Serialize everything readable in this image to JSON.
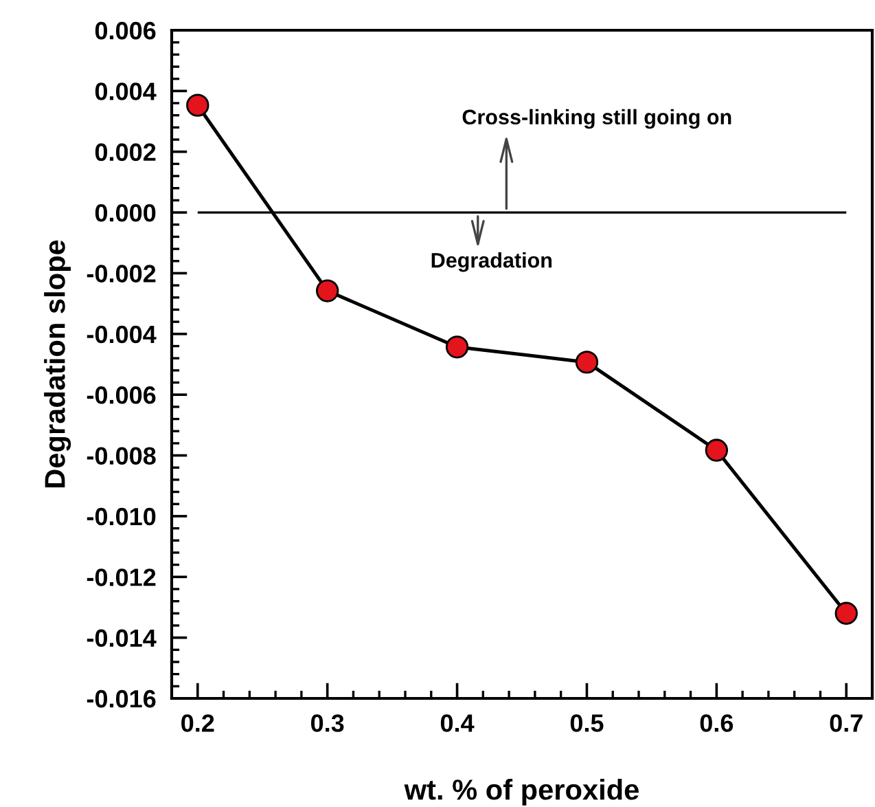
{
  "chart_data": {
    "type": "line",
    "xlabel": "wt. % of peroxide",
    "ylabel": "Degradation slope",
    "x": [
      0.2,
      0.3,
      0.4,
      0.5,
      0.6,
      0.7
    ],
    "series": [
      {
        "color": "#e3141b",
        "values": [
          0.00353,
          -0.00258,
          -0.00443,
          -0.00493,
          -0.00783,
          -0.0132
        ]
      }
    ],
    "marker": "circle",
    "line_style": "solid",
    "grid": false,
    "legend": false,
    "xlim": [
      0.18,
      0.72
    ],
    "xticks": [
      0.2,
      0.3,
      0.4,
      0.5,
      0.6,
      0.7
    ],
    "ylim": [
      -0.016,
      0.006
    ],
    "yticks": [
      {
        "value": -0.016,
        "label": "-0.016"
      },
      {
        "value": -0.014,
        "label": "-0.014"
      },
      {
        "value": -0.012,
        "label": "-0.012"
      },
      {
        "value": -0.01,
        "label": "-0.010"
      },
      {
        "value": -0.008,
        "label": "-0.008"
      },
      {
        "value": -0.006,
        "label": "-0.006"
      },
      {
        "value": -0.004,
        "label": "-0.004"
      },
      {
        "value": -0.002,
        "label": "-0.002"
      },
      {
        "value": 0,
        "label": "0.000"
      },
      {
        "value": 0.002,
        "label": "0.002"
      },
      {
        "value": 0.004,
        "label": "0.004"
      },
      {
        "value": 0.006,
        "label": "0.006"
      }
    ],
    "ref_lines": [
      {
        "axis": "y",
        "value": 0,
        "color": "#000000"
      }
    ],
    "annotations": [
      {
        "text": "Cross-linking still going on",
        "x": 0.438,
        "y": 0
      },
      {
        "text": "Degradation",
        "x": 0.416,
        "y": 0
      }
    ]
  }
}
